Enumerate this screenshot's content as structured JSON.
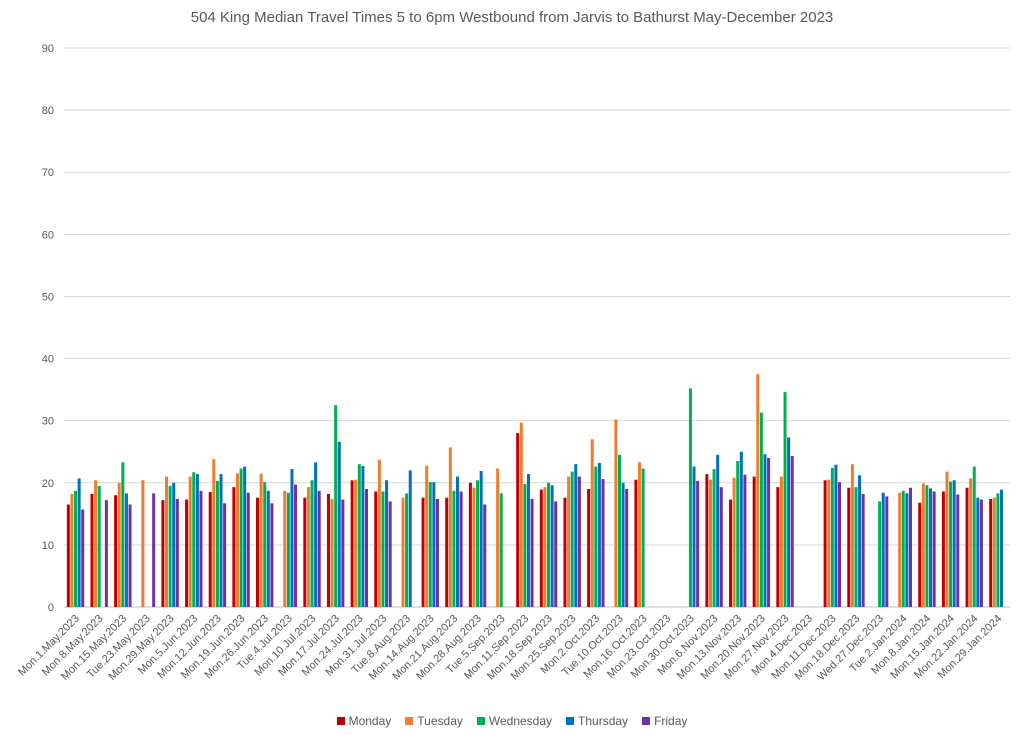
{
  "chart_data": {
    "type": "bar",
    "title": "504 King Median Travel Times 5 to 6pm Westbound from Jarvis to Bathurst May-December 2023",
    "xlabel": "",
    "ylabel": "",
    "ylim": [
      0,
      90
    ],
    "yticks": [
      "0",
      "10",
      "20",
      "30",
      "40",
      "50",
      "60",
      "70",
      "80",
      "90"
    ],
    "grid": true,
    "legend_position": "bottom",
    "categories": [
      "Mon.1.May.2023",
      "Mon.8.May.2023",
      "Mon.15.May.2023",
      "Tue.23.May.2023",
      "Mon.29.May.2023",
      "Mon.5.Jun.2023",
      "Mon.12.Jun.2023",
      "Mon.19.Jun.2023",
      "Mon.26.Jun.2023",
      "Tue.4.Jul.2023",
      "Mon.10.Jul.2023",
      "Mon.17.Jul.2023",
      "Mon.24.Jul.2023",
      "Mon.31.Jul.2023",
      "Tue.8.Aug.2023",
      "Mon.14.Aug.2023",
      "Mon.21.Aug.2023",
      "Mon.28.Aug.2023",
      "Tue.5.Sep.2023",
      "Mon.11.Sep.2023",
      "Mon.18.Sep.2023",
      "Mon.25.Sep.2023",
      "Mon.2.Oct.2023",
      "Tue.10.Oct.2023",
      "Mon.16.Oct.2023",
      "Mon.23.Oct.2023",
      "Mon.30.Oct.2023",
      "Mon.6.Nov.2023",
      "Mon.13.Nov.2023",
      "Mon.20.Nov.2023",
      "Mon.27.Nov.2023",
      "Mon.4.Dec.2023",
      "Mon.11.Dec.2023",
      "Mon.18.Dec.2023",
      "Wed.27.Dec.2023",
      "Tue.2.Jan.2024",
      "Mon.8.Jan.2024",
      "Mon.15.Jan.2024",
      "Mon.22.Jan.2024",
      "Mon.29.Jan.2024"
    ],
    "series": [
      {
        "name": "Monday",
        "color": "#c00000",
        "values": [
          16.5,
          18.2,
          18,
          null,
          17.2,
          17.3,
          18.5,
          19.3,
          17.6,
          null,
          17.6,
          18.2,
          20.4,
          18.6,
          null,
          17.6,
          17.6,
          20,
          null,
          28,
          18.9,
          17.6,
          19,
          null,
          20.5,
          null,
          null,
          21.4,
          17.3,
          21,
          19.3,
          null,
          20.4,
          19.2,
          null,
          null,
          16.8,
          18.6,
          19.2,
          17.4
        ]
      },
      {
        "name": "Tuesday",
        "color": "#ed7d31",
        "values": [
          18.2,
          20.4,
          20,
          20.4,
          21,
          21,
          23.8,
          21.5,
          21.5,
          18.7,
          19.3,
          17.4,
          20.5,
          23.7,
          17.6,
          22.7,
          25.7,
          19.2,
          22.3,
          29.7,
          19.3,
          21,
          27,
          30.2,
          23.3,
          null,
          null,
          20.5,
          20.8,
          37.5,
          21,
          null,
          20.5,
          23,
          null,
          18.4,
          19.9,
          21.8,
          20.7,
          17.6
        ]
      },
      {
        "name": "Wednesday",
        "color": "#00b050",
        "values": [
          18.7,
          19.5,
          23.3,
          null,
          19.5,
          21.7,
          20.3,
          22.3,
          20.1,
          18.4,
          20.4,
          32.5,
          23,
          18.6,
          18.3,
          20.1,
          18.7,
          20.4,
          18.3,
          19.8,
          20,
          21.8,
          22.6,
          24.5,
          22.3,
          null,
          35.2,
          22.2,
          23.5,
          31.3,
          34.6,
          null,
          22.4,
          19.3,
          17,
          18.7,
          19.6,
          20.2,
          22.6,
          18.3
        ]
      },
      {
        "name": "Thursday",
        "color": "#0070c0",
        "values": [
          20.7,
          null,
          18.3,
          null,
          20,
          21.4,
          21.4,
          22.6,
          18.7,
          22.2,
          23.3,
          26.6,
          22.7,
          20.4,
          22,
          20.1,
          21,
          21.9,
          null,
          21.4,
          19.6,
          23,
          23.2,
          20,
          null,
          null,
          22.6,
          24.5,
          25,
          24.6,
          27.3,
          null,
          22.9,
          21.2,
          18.4,
          18.3,
          19.1,
          20.4,
          17.6,
          18.9
        ]
      },
      {
        "name": "Friday",
        "color": "#7030a0",
        "values": [
          15.7,
          17.2,
          16.5,
          18.3,
          17.4,
          18.7,
          16.7,
          18.4,
          16.7,
          19.7,
          18.7,
          17.3,
          19,
          17,
          null,
          17.4,
          18.6,
          16.5,
          null,
          17.4,
          17,
          21,
          20.6,
          19,
          null,
          null,
          20.3,
          19.3,
          21.3,
          24,
          24.3,
          null,
          20.1,
          18.2,
          17.8,
          19.2,
          18.6,
          18.1,
          17.3,
          null
        ]
      }
    ]
  }
}
